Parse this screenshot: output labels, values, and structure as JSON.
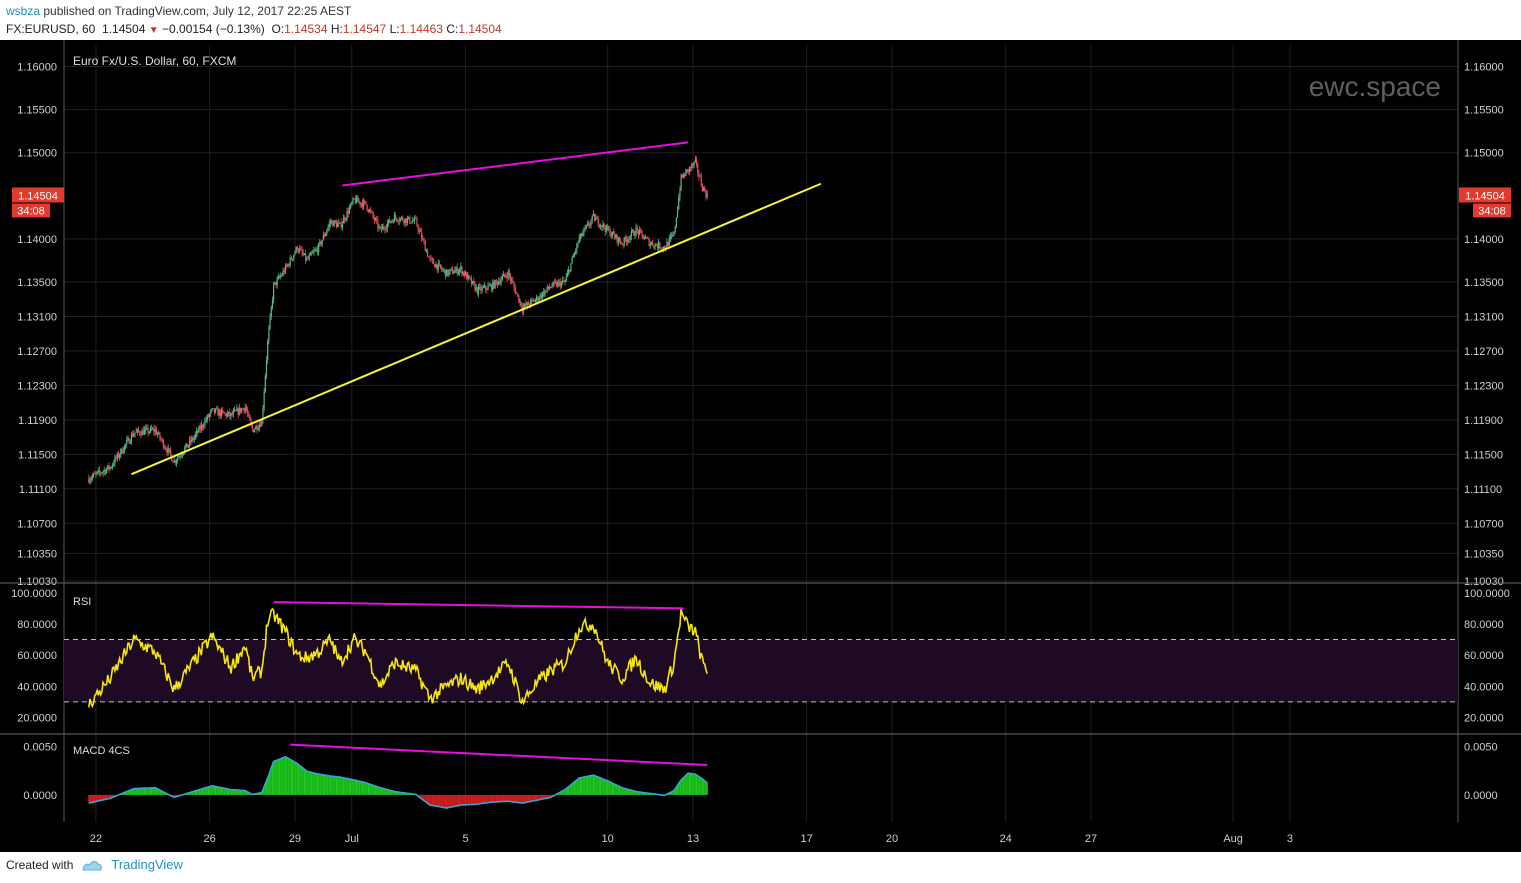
{
  "header": {
    "user": "wsbza",
    "published": "published on TradingView.com, July 12, 2017 22:25 AEST",
    "symbol_line": "FX:EURUSD, 60",
    "last": "1.14504",
    "change": "−0.00154 (−0.13%)",
    "o_label": "O:",
    "o": "1.14534",
    "h_label": "H:",
    "h": "1.14547",
    "l_label": "L:",
    "l": "1.14463",
    "c_label": "C:",
    "c": "1.14504"
  },
  "footer": {
    "created_with": "Created with",
    "brand": "TradingView",
    "logo_icon": "tradingview-logo-icon"
  },
  "colors": {
    "background": "#000000",
    "up": "#53b987",
    "down": "#eb4d5c",
    "rsi": "#f5e60b",
    "trendline_yellow": "#f5f536",
    "divergence": "#e60fde",
    "macd_line": "#2fa9d4",
    "hist_up": "#1ec81e",
    "hist_down": "#d12020",
    "price_tag": "#e23a2e",
    "axis_text": "#cfcfcf",
    "grid": "#1f1f1f"
  },
  "chart_data": [
    {
      "type": "candlestick",
      "title": "Euro Fx/U.S. Dollar, 60, FXCM",
      "watermark": "ewc.space",
      "ylim": [
        1.1003,
        1.1625
      ],
      "y_ticks": [
        "1.16000",
        "1.15500",
        "1.15000",
        "1.14000",
        "1.13500",
        "1.13100",
        "1.12700",
        "1.12300",
        "1.11900",
        "1.11500",
        "1.11100",
        "1.10700",
        "1.10350",
        "1.10030"
      ],
      "last_price_tag": "1.14504",
      "countdown_tag": "34:08",
      "x_ticks": [
        "22",
        "26",
        "29",
        "Jul",
        "5",
        "10",
        "13",
        "17",
        "20",
        "24",
        "27",
        "Aug",
        "3"
      ],
      "path": [
        [
          "Jun 21 18:00",
          1.1122
        ],
        [
          "Jun 22 12:00",
          1.1135
        ],
        [
          "Jun 23 08:00",
          1.1175
        ],
        [
          "Jun 24 02:00",
          1.1178
        ],
        [
          "Jun 24 18:00",
          1.1142
        ],
        [
          "Jun 25 10:00",
          1.1168
        ],
        [
          "Jun 26 02:00",
          1.12
        ],
        [
          "Jun 26 18:00",
          1.1195
        ],
        [
          "Jun 27 06:00",
          1.1205
        ],
        [
          "Jun 27 12:00",
          1.1178
        ],
        [
          "Jun 27 20:00",
          1.1188
        ],
        [
          "Jun 28 01:00",
          1.128
        ],
        [
          "Jun 28 06:00",
          1.1345
        ],
        [
          "Jun 28 16:00",
          1.1365
        ],
        [
          "Jun 29 02:00",
          1.139
        ],
        [
          "Jun 29 10:00",
          1.1375
        ],
        [
          "Jun 29 20:00",
          1.139
        ],
        [
          "Jun 30 06:00",
          1.142
        ],
        [
          "Jun 30 14:00",
          1.1415
        ],
        [
          "Jul 1 02:00",
          1.1445
        ],
        [
          "Jul 1 12:00",
          1.144
        ],
        [
          "Jul 2 00:00",
          1.141
        ],
        [
          "Jul 2 12:00",
          1.1425
        ],
        [
          "Jul 3 06:00",
          1.142
        ],
        [
          "Jul 3 18:00",
          1.1375
        ],
        [
          "Jul 4 08:00",
          1.136
        ],
        [
          "Jul 4 20:00",
          1.1365
        ],
        [
          "Jul 5 10:00",
          1.134
        ],
        [
          "Jul 5 22:00",
          1.1345
        ],
        [
          "Jul 6 12:00",
          1.136
        ],
        [
          "Jul 7 00:00",
          1.132
        ],
        [
          "Jul 7 12:00",
          1.133
        ],
        [
          "Jul 8 00:00",
          1.1345
        ],
        [
          "Jul 8 12:00",
          1.135
        ],
        [
          "Jul 9 00:00",
          1.14
        ],
        [
          "Jul 9 12:00",
          1.1425
        ],
        [
          "Jul 10 00:00",
          1.141
        ],
        [
          "Jul 10 12:00",
          1.1395
        ],
        [
          "Jul 11 00:00",
          1.141
        ],
        [
          "Jul 11 12:00",
          1.1395
        ],
        [
          "Jul 12 00:00",
          1.139
        ],
        [
          "Jul 12 08:00",
          1.1405
        ],
        [
          "Jul 12 14:00",
          1.147
        ],
        [
          "Jul 12 20:00",
          1.148
        ],
        [
          "Jul 13 02:00",
          1.1488
        ],
        [
          "Jul 13 08:00",
          1.146
        ],
        [
          "Jul 13 12:00",
          1.145
        ]
      ],
      "trendlines": [
        {
          "name": "yellow support",
          "from": [
            "Jun 23 06:00",
            1.1127
          ],
          "to": [
            "Jul 17 12:00",
            1.1464
          ]
        },
        {
          "name": "magenta resistance",
          "from": [
            "Jun 30 16:00",
            1.1462
          ],
          "to": [
            "Jul 12 20:00",
            1.1512
          ]
        }
      ]
    },
    {
      "type": "line",
      "title": "RSI",
      "ylim": [
        10,
        105
      ],
      "y_ticks": [
        "100.0000",
        "80.0000",
        "60.0000",
        "40.0000",
        "20.0000"
      ],
      "levels": [
        70,
        30
      ],
      "path": [
        [
          "Jun 21 18:00",
          28
        ],
        [
          "Jun 22 12:00",
          45
        ],
        [
          "Jun 23 08:00",
          70
        ],
        [
          "Jun 24 02:00",
          62
        ],
        [
          "Jun 24 18:00",
          38
        ],
        [
          "Jun 25 10:00",
          55
        ],
        [
          "Jun 26 02:00",
          72
        ],
        [
          "Jun 26 18:00",
          52
        ],
        [
          "Jun 27 06:00",
          66
        ],
        [
          "Jun 27 12:00",
          45
        ],
        [
          "Jun 27 20:00",
          50
        ],
        [
          "Jun 28 01:00",
          82
        ],
        [
          "Jun 28 06:00",
          86
        ],
        [
          "Jun 28 16:00",
          75
        ],
        [
          "Jun 29 02:00",
          60
        ],
        [
          "Jun 29 10:00",
          58
        ],
        [
          "Jun 29 20:00",
          62
        ],
        [
          "Jun 30 06:00",
          70
        ],
        [
          "Jun 30 14:00",
          55
        ],
        [
          "Jul 1 02:00",
          70
        ],
        [
          "Jul 1 12:00",
          62
        ],
        [
          "Jul 2 00:00",
          40
        ],
        [
          "Jul 2 12:00",
          55
        ],
        [
          "Jul 3 06:00",
          50
        ],
        [
          "Jul 3 18:00",
          32
        ],
        [
          "Jul 4 08:00",
          40
        ],
        [
          "Jul 4 20:00",
          45
        ],
        [
          "Jul 5 10:00",
          38
        ],
        [
          "Jul 5 22:00",
          45
        ],
        [
          "Jul 6 12:00",
          55
        ],
        [
          "Jul 7 00:00",
          30
        ],
        [
          "Jul 7 12:00",
          42
        ],
        [
          "Jul 8 00:00",
          50
        ],
        [
          "Jul 8 12:00",
          55
        ],
        [
          "Jul 9 00:00",
          78
        ],
        [
          "Jul 9 12:00",
          80
        ],
        [
          "Jul 10 00:00",
          55
        ],
        [
          "Jul 10 12:00",
          45
        ],
        [
          "Jul 11 00:00",
          58
        ],
        [
          "Jul 11 12:00",
          42
        ],
        [
          "Jul 12 00:00",
          38
        ],
        [
          "Jul 12 08:00",
          55
        ],
        [
          "Jul 12 14:00",
          87
        ],
        [
          "Jul 12 20:00",
          78
        ],
        [
          "Jul 13 02:00",
          75
        ],
        [
          "Jul 13 08:00",
          55
        ],
        [
          "Jul 13 12:00",
          50
        ]
      ],
      "divergence_line": {
        "from": [
          "Jun 28 06:00",
          94
        ],
        "to": [
          "Jul 12 16:00",
          90
        ]
      }
    },
    {
      "type": "histogram",
      "title": "MACD 4CS",
      "ylim": [
        -0.0028,
        0.0062
      ],
      "y_ticks": [
        "0.0050",
        "0.0000"
      ],
      "histogram": [
        [
          "Jun 21 18:00",
          -0.0008
        ],
        [
          "Jun 22 12:00",
          -0.0003
        ],
        [
          "Jun 23 08:00",
          0.0007
        ],
        [
          "Jun 24 02:00",
          0.0008
        ],
        [
          "Jun 24 18:00",
          -0.0002
        ],
        [
          "Jun 25 10:00",
          0.0004
        ],
        [
          "Jun 26 02:00",
          0.001
        ],
        [
          "Jun 26 18:00",
          0.0006
        ],
        [
          "Jun 27 06:00",
          0.0005
        ],
        [
          "Jun 27 12:00",
          0.0001
        ],
        [
          "Jun 27 20:00",
          0.0003
        ],
        [
          "Jun 28 01:00",
          0.0018
        ],
        [
          "Jun 28 06:00",
          0.0035
        ],
        [
          "Jun 28 16:00",
          0.004
        ],
        [
          "Jun 29 02:00",
          0.0033
        ],
        [
          "Jun 29 10:00",
          0.0025
        ],
        [
          "Jun 29 20:00",
          0.0022
        ],
        [
          "Jun 30 06:00",
          0.002
        ],
        [
          "Jun 30 14:00",
          0.0019
        ],
        [
          "Jul 1 02:00",
          0.0016
        ],
        [
          "Jul 1 12:00",
          0.0013
        ],
        [
          "Jul 2 00:00",
          0.0008
        ],
        [
          "Jul 2 12:00",
          0.0004
        ],
        [
          "Jul 3 06:00",
          0.0001
        ],
        [
          "Jul 3 18:00",
          -0.001
        ],
        [
          "Jul 4 08:00",
          -0.0013
        ],
        [
          "Jul 4 20:00",
          -0.001
        ],
        [
          "Jul 5 10:00",
          -0.0009
        ],
        [
          "Jul 5 22:00",
          -0.0007
        ],
        [
          "Jul 6 12:00",
          -0.0006
        ],
        [
          "Jul 7 00:00",
          -0.0008
        ],
        [
          "Jul 7 12:00",
          -0.0005
        ],
        [
          "Jul 8 00:00",
          -0.0002
        ],
        [
          "Jul 8 12:00",
          0.0006
        ],
        [
          "Jul 9 00:00",
          0.0018
        ],
        [
          "Jul 9 12:00",
          0.0021
        ],
        [
          "Jul 10 00:00",
          0.0015
        ],
        [
          "Jul 10 12:00",
          0.0008
        ],
        [
          "Jul 11 00:00",
          0.0004
        ],
        [
          "Jul 11 12:00",
          0.0002
        ],
        [
          "Jul 12 00:00",
          0.0
        ],
        [
          "Jul 12 08:00",
          0.0005
        ],
        [
          "Jul 12 14:00",
          0.0016
        ],
        [
          "Jul 12 20:00",
          0.0023
        ],
        [
          "Jul 13 02:00",
          0.0022
        ],
        [
          "Jul 13 08:00",
          0.0017
        ],
        [
          "Jul 13 12:00",
          0.0013
        ]
      ],
      "divergence_line": {
        "from": [
          "Jun 28 20:00",
          0.0052
        ],
        "to": [
          "Jul 13 12:00",
          0.0031
        ]
      }
    }
  ]
}
